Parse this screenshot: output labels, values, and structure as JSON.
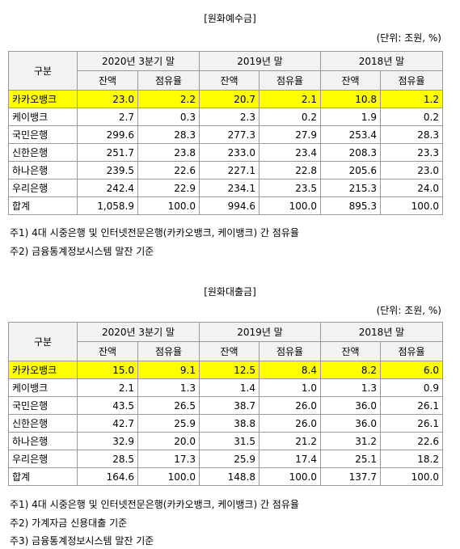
{
  "sections": [
    {
      "title": "[원화예수금]",
      "unit": "(단위: 조원, %)",
      "table": {
        "group": "구분",
        "periods": [
          "2020년 3분기 말",
          "2019년 말",
          "2018년 말"
        ],
        "sub": [
          "잔액",
          "점유율",
          "잔액",
          "점유율",
          "잔액",
          "점유율"
        ],
        "rows": [
          [
            "카카오뱅크",
            "23.0",
            "2.2",
            "20.7",
            "2.1",
            "10.8",
            "1.2"
          ],
          [
            "케이뱅크",
            "2.7",
            "0.3",
            "2.3",
            "0.2",
            "1.9",
            "0.2"
          ],
          [
            "국민은행",
            "299.6",
            "28.3",
            "277.3",
            "27.9",
            "253.4",
            "28.3"
          ],
          [
            "신한은행",
            "251.7",
            "23.8",
            "233.0",
            "23.4",
            "208.3",
            "23.3"
          ],
          [
            "하나은행",
            "239.5",
            "22.6",
            "227.1",
            "22.8",
            "205.6",
            "23.0"
          ],
          [
            "우리은행",
            "242.4",
            "22.9",
            "234.1",
            "23.5",
            "215.3",
            "24.0"
          ],
          [
            "합계",
            "1,058.9",
            "100.0",
            "994.6",
            "100.0",
            "895.3",
            "100.0"
          ]
        ]
      },
      "notes": [
        "주1) 4대 시중은행 및 인터넷전문은행(카카오뱅크, 케이뱅크) 간 점유율",
        "주2) 금융통계정보시스템 말잔 기준"
      ]
    },
    {
      "title": "[원화대출금]",
      "unit": "(단위: 조원, %)",
      "table": {
        "group": "구분",
        "periods": [
          "2020년 3분기 말",
          "2019년 말",
          "2018년 말"
        ],
        "sub": [
          "잔액",
          "점유율",
          "잔액",
          "점유율",
          "잔액",
          "점유율"
        ],
        "rows": [
          [
            "카카오뱅크",
            "15.0",
            "9.1",
            "12.5",
            "8.4",
            "8.2",
            "6.0"
          ],
          [
            "케이뱅크",
            "2.1",
            "1.3",
            "1.4",
            "1.0",
            "1.3",
            "0.9"
          ],
          [
            "국민은행",
            "43.5",
            "26.5",
            "38.7",
            "26.0",
            "36.0",
            "26.1"
          ],
          [
            "신한은행",
            "42.7",
            "25.9",
            "38.8",
            "26.0",
            "36.0",
            "26.1"
          ],
          [
            "하나은행",
            "32.9",
            "20.0",
            "31.5",
            "21.2",
            "31.2",
            "22.6"
          ],
          [
            "우리은행",
            "28.5",
            "17.3",
            "25.9",
            "17.4",
            "25.1",
            "18.2"
          ],
          [
            "합계",
            "164.6",
            "100.0",
            "148.8",
            "100.0",
            "137.7",
            "100.0"
          ]
        ]
      },
      "notes": [
        "주1) 4대 시중은행 및 인터넷전문은행(카카오뱅크, 케이뱅크) 간 점유율",
        "주2) 가계자금 신용대출 기준",
        "주3) 금융통계정보시스템 말잔 기준"
      ]
    }
  ]
}
